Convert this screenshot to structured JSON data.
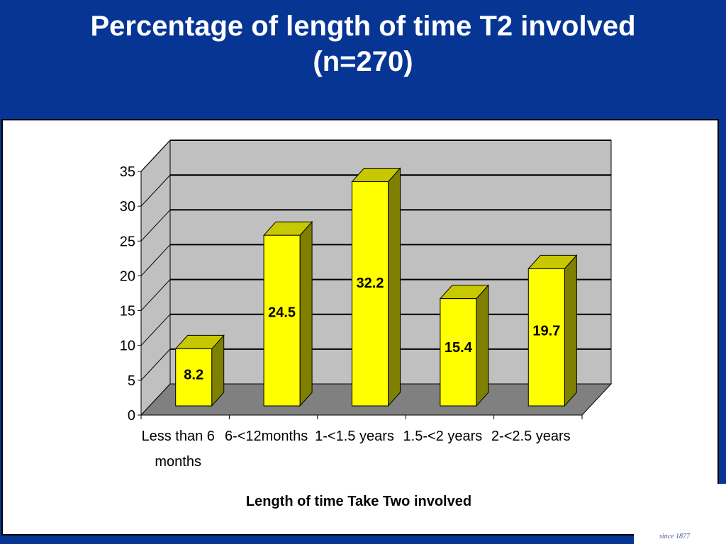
{
  "slide": {
    "title_line1": "Percentage of length of time T2 involved",
    "title_line2": "(n=270)",
    "logo_text": "since 1877"
  },
  "colors": {
    "background": "#063594",
    "bar_front": "#ffff00",
    "bar_top": "#c8c800",
    "bar_side": "#808000",
    "wall": "#c0c0c0",
    "floor": "#808080"
  },
  "chart_data": {
    "type": "bar",
    "title": "",
    "xlabel": "Length of time Take Two involved",
    "ylabel": "",
    "ylim": [
      0,
      35
    ],
    "yticks": [
      0,
      5,
      10,
      15,
      20,
      25,
      30,
      35
    ],
    "grid": true,
    "categories": [
      [
        "Less than 6",
        "months"
      ],
      [
        "6-<12months"
      ],
      [
        "1-<1.5 years"
      ],
      [
        "1.5-<2 years"
      ],
      [
        "2-<2.5 years"
      ]
    ],
    "values": [
      8.2,
      24.5,
      32.2,
      15.4,
      19.7
    ],
    "data_labels": [
      "8.2",
      "24.5",
      "32.2",
      "15.4",
      "19.7"
    ]
  }
}
